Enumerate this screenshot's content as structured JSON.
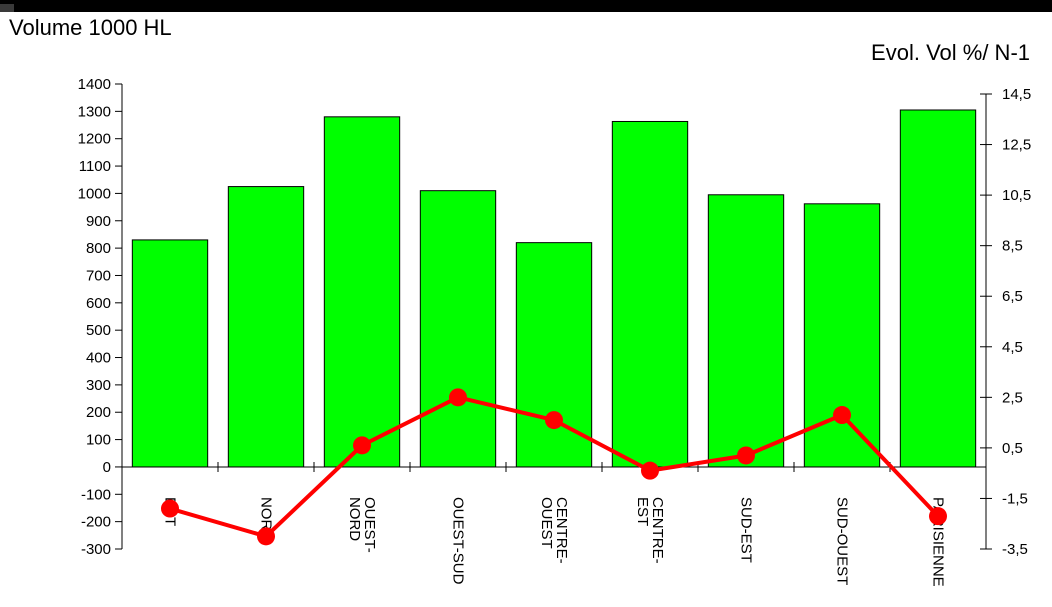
{
  "chart_data": {
    "type": "bar",
    "title": "",
    "categories": [
      "EST",
      "NORD",
      "OUEST-NORD",
      "OUEST-SUD",
      "CENTRE-OUEST",
      "CENTRE-EST",
      "SUD-EST",
      "SUD-OUEST",
      "PARISIENNE"
    ],
    "category_lines": [
      [
        "EST"
      ],
      [
        "NORD"
      ],
      [
        "OUEST-",
        "NORD"
      ],
      [
        "OUEST-SUD"
      ],
      [
        "CENTRE-",
        "OUEST"
      ],
      [
        "CENTRE-",
        "EST"
      ],
      [
        "SUD-EST"
      ],
      [
        "SUD-OUEST"
      ],
      [
        "PARISIENNE"
      ]
    ],
    "ylabel": "Volume 1000 HL",
    "y2label": "Evol. Vol %/ N-1",
    "ylim": [
      -300,
      1400
    ],
    "y_ticks": [
      1400,
      1300,
      1200,
      1100,
      1000,
      900,
      800,
      700,
      600,
      500,
      400,
      300,
      200,
      100,
      0,
      -100,
      -200,
      -300
    ],
    "y2lim": [
      -3.5,
      14.5
    ],
    "y2_ticks": [
      "14,5",
      "12,5",
      "10,5",
      "8,5",
      "6,5",
      "4,5",
      "2,5",
      "0,5",
      "-1,5",
      "-3,5"
    ],
    "series": [
      {
        "name": "Volume 1000 HL",
        "kind": "bar",
        "axis": "left",
        "color": "#00ff00",
        "values": [
          830,
          1025,
          1280,
          1010,
          820,
          1263,
          995,
          962,
          1305
        ]
      },
      {
        "name": "Evol. Vol %/ N-1",
        "kind": "line",
        "axis": "right",
        "color": "#ff0000",
        "values": [
          -1.9,
          -3.0,
          0.6,
          2.5,
          1.6,
          -0.4,
          0.2,
          1.8,
          -2.2
        ]
      }
    ],
    "grid": false,
    "legend": "none"
  }
}
